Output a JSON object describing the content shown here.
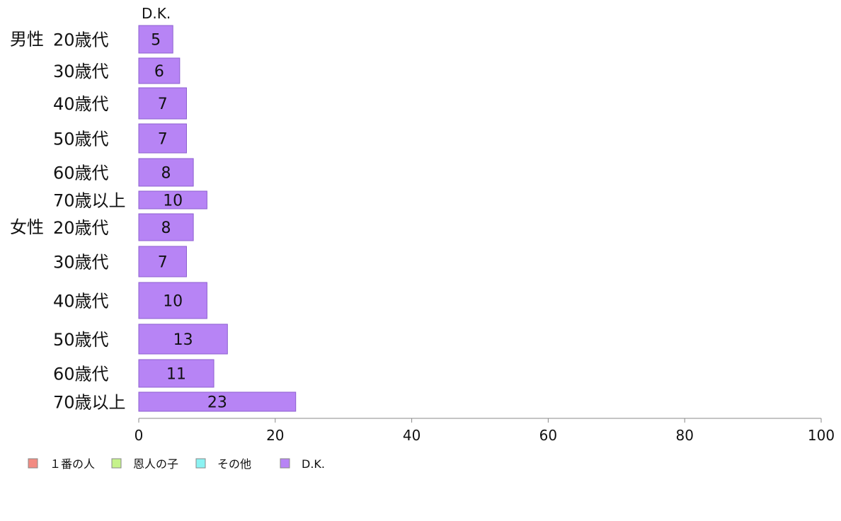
{
  "chart_data": {
    "type": "bar",
    "orientation": "horizontal",
    "series_header": "D.K.",
    "groups": [
      {
        "label": "男性",
        "rows": [
          {
            "category": "20歳代",
            "value": 5
          },
          {
            "category": "30歳代",
            "value": 6
          },
          {
            "category": "40歳代",
            "value": 7
          },
          {
            "category": "50歳代",
            "value": 7
          },
          {
            "category": "60歳代",
            "value": 8
          },
          {
            "category": "70歳以上",
            "value": 10
          }
        ]
      },
      {
        "label": "女性",
        "rows": [
          {
            "category": "20歳代",
            "value": 8
          },
          {
            "category": "30歳代",
            "value": 7
          },
          {
            "category": "40歳代",
            "value": 10
          },
          {
            "category": "50歳代",
            "value": 13
          },
          {
            "category": "60歳代",
            "value": 11
          },
          {
            "category": "70歳以上",
            "value": 23
          }
        ]
      }
    ],
    "xlim": [
      0,
      100
    ],
    "xticks": [
      0,
      20,
      40,
      60,
      80,
      100
    ],
    "grid": false,
    "legend_position": "bottom-left",
    "legend": [
      {
        "name": "１番の人",
        "color": "#f28b82"
      },
      {
        "name": "恩人の子",
        "color": "#c5f28b"
      },
      {
        "name": "その他",
        "color": "#8bf2f2"
      },
      {
        "name": "D.K.",
        "color": "#b784f5"
      }
    ],
    "bar_color": "#b784f5",
    "bar_stroke": "#8c5fd0"
  }
}
